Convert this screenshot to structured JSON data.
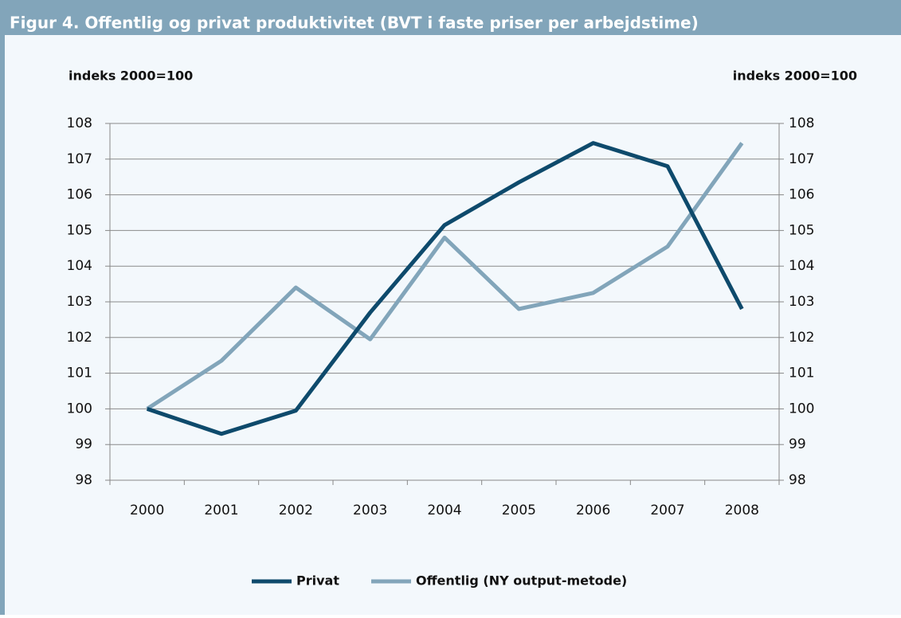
{
  "chart_data": {
    "type": "line",
    "title": "Figur 4. Offentlig og privat produktivitet  (BVT i faste priser per arbejdstime)",
    "y_label": "indeks 2000=100",
    "y2_label": "indeks 2000=100",
    "categories": [
      "2000",
      "2001",
      "2002",
      "2003",
      "2004",
      "2005",
      "2006",
      "2007",
      "2008"
    ],
    "series": [
      {
        "name": "Privat",
        "color": "#0e4a6c",
        "values": [
          100,
          99.3,
          99.95,
          102.7,
          105.15,
          106.35,
          107.45,
          106.8,
          102.8
        ]
      },
      {
        "name": "Offentlig (NY output-metode)",
        "color": "#82a5ba",
        "values": [
          100,
          101.35,
          103.4,
          101.95,
          104.8,
          102.8,
          103.25,
          104.55,
          107.45
        ]
      }
    ],
    "ylim": [
      98,
      108
    ],
    "yticks": [
      98,
      99,
      100,
      101,
      102,
      103,
      104,
      105,
      106,
      107,
      108
    ],
    "y2lim": [
      98,
      108
    ],
    "y2ticks": [
      98,
      99,
      100,
      101,
      102,
      103,
      104,
      105,
      106,
      107,
      108
    ],
    "grid": true,
    "legend": "bottom",
    "header_color": "#82a5ba"
  }
}
